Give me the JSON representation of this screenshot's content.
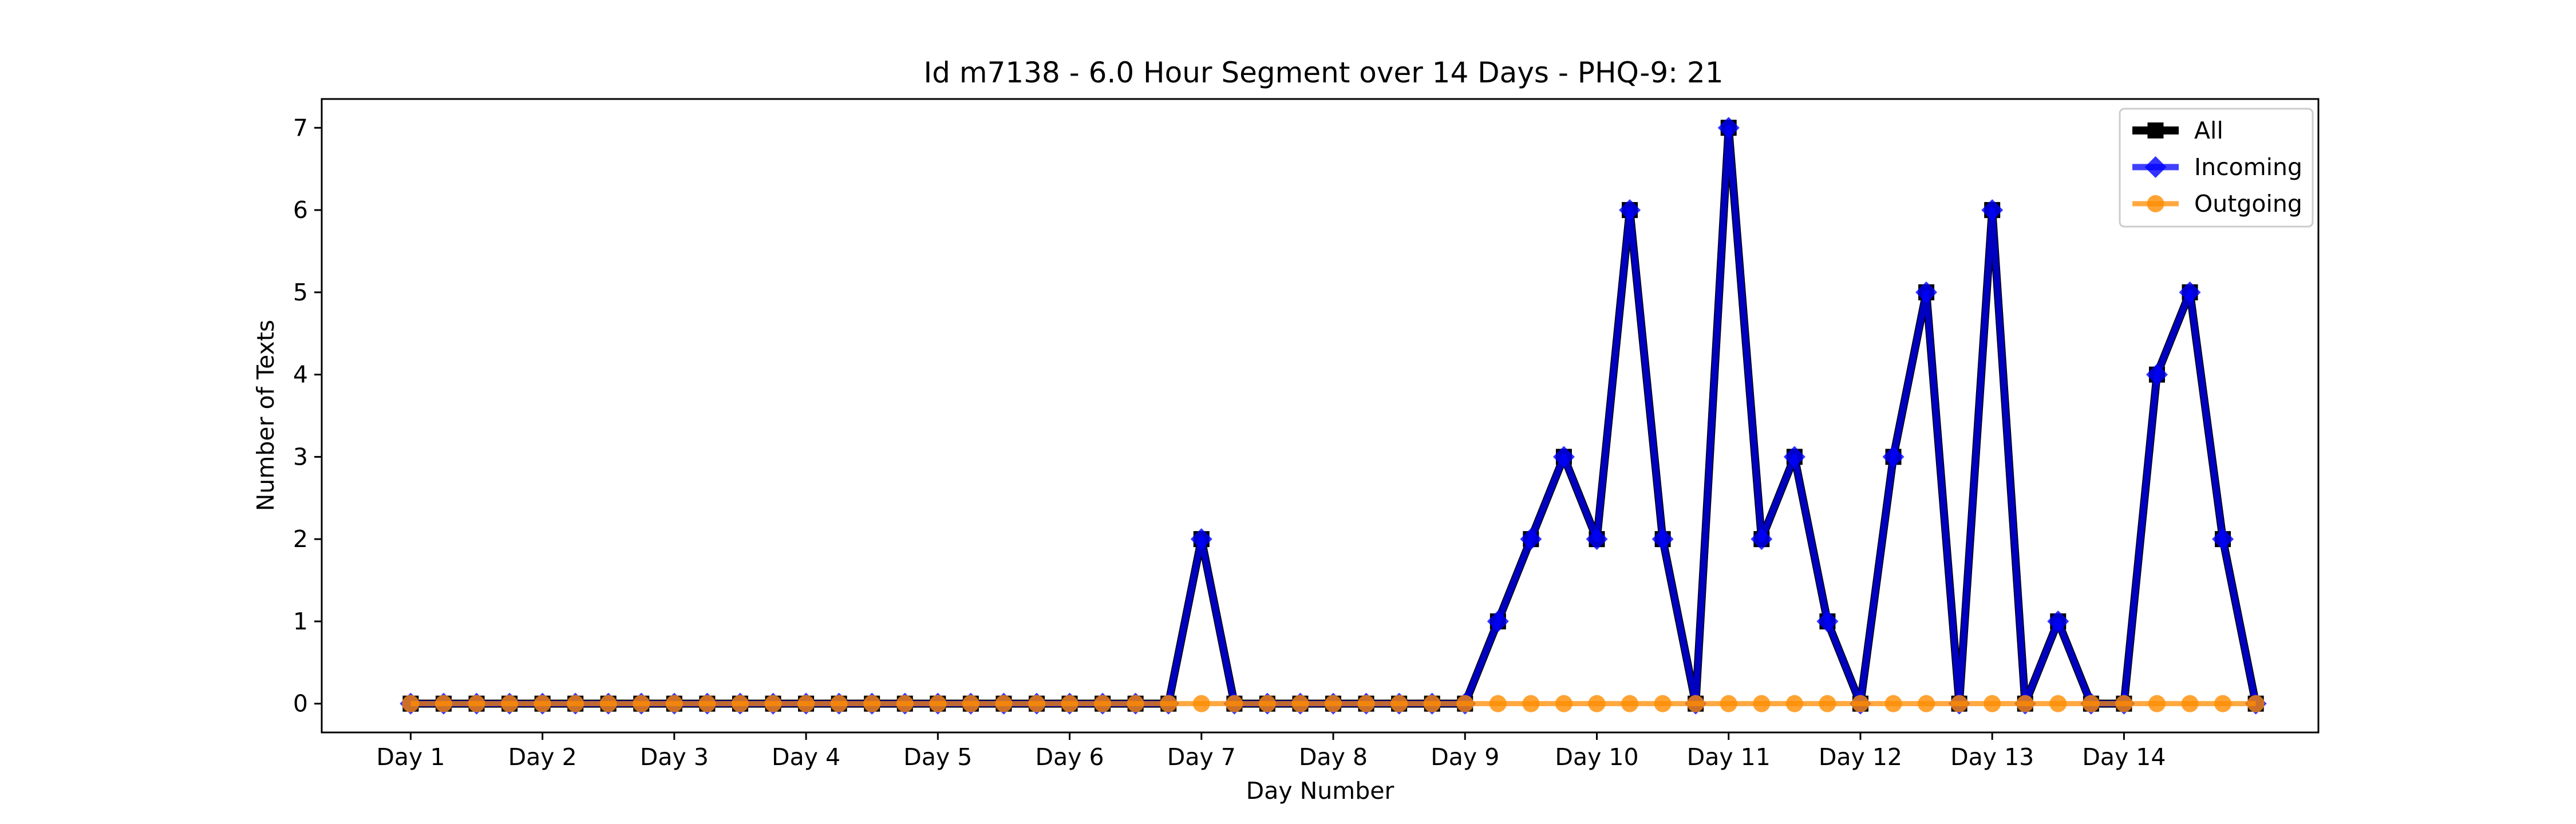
{
  "chart_data": {
    "type": "line",
    "title": "Id m7138 - 6.0 Hour Segment over 14 Days - PHQ-9: 21",
    "xlabel": "Day Number",
    "ylabel": "Number of Texts",
    "ylim": [
      -0.35,
      7.35
    ],
    "xlim": [
      -2.7,
      57.9
    ],
    "yticks": [
      0,
      1,
      2,
      3,
      4,
      5,
      6,
      7
    ],
    "xticks": [
      {
        "pos": 0,
        "label": "Day 1"
      },
      {
        "pos": 4,
        "label": "Day 2"
      },
      {
        "pos": 8,
        "label": "Day 3"
      },
      {
        "pos": 12,
        "label": "Day 4"
      },
      {
        "pos": 16,
        "label": "Day 5"
      },
      {
        "pos": 20,
        "label": "Day 6"
      },
      {
        "pos": 24,
        "label": "Day 7"
      },
      {
        "pos": 28,
        "label": "Day 8"
      },
      {
        "pos": 32,
        "label": "Day 9"
      },
      {
        "pos": 36,
        "label": "Day 10"
      },
      {
        "pos": 40,
        "label": "Day 11"
      },
      {
        "pos": 44,
        "label": "Day 12"
      },
      {
        "pos": 48,
        "label": "Day 13"
      },
      {
        "pos": 52,
        "label": "Day 14"
      }
    ],
    "legend_position": "upper right",
    "series": [
      {
        "name": "All",
        "color": "#000000",
        "marker": "square",
        "values": [
          0,
          0,
          0,
          0,
          0,
          0,
          0,
          0,
          0,
          0,
          0,
          0,
          0,
          0,
          0,
          0,
          0,
          0,
          0,
          0,
          0,
          0,
          0,
          0,
          2,
          0,
          0,
          0,
          0,
          0,
          0,
          0,
          0,
          1,
          2,
          3,
          2,
          6,
          2,
          0,
          7,
          2,
          3,
          1,
          0,
          3,
          5,
          0,
          6,
          0,
          1,
          0,
          0,
          4,
          5,
          2,
          0
        ]
      },
      {
        "name": "Incoming",
        "color": "#0000ff",
        "marker": "diamond",
        "values": [
          0,
          0,
          0,
          0,
          0,
          0,
          0,
          0,
          0,
          0,
          0,
          0,
          0,
          0,
          0,
          0,
          0,
          0,
          0,
          0,
          0,
          0,
          0,
          0,
          2,
          0,
          0,
          0,
          0,
          0,
          0,
          0,
          0,
          1,
          2,
          3,
          2,
          6,
          2,
          0,
          7,
          2,
          3,
          1,
          0,
          3,
          5,
          0,
          6,
          0,
          1,
          0,
          0,
          4,
          5,
          2,
          0
        ]
      },
      {
        "name": "Outgoing",
        "color": "#ff8c00",
        "marker": "circle",
        "values": [
          0,
          0,
          0,
          0,
          0,
          0,
          0,
          0,
          0,
          0,
          0,
          0,
          0,
          0,
          0,
          0,
          0,
          0,
          0,
          0,
          0,
          0,
          0,
          0,
          0,
          0,
          0,
          0,
          0,
          0,
          0,
          0,
          0,
          0,
          0,
          0,
          0,
          0,
          0,
          0,
          0,
          0,
          0,
          0,
          0,
          0,
          0,
          0,
          0,
          0,
          0,
          0,
          0,
          0,
          0,
          0,
          0
        ]
      }
    ]
  }
}
